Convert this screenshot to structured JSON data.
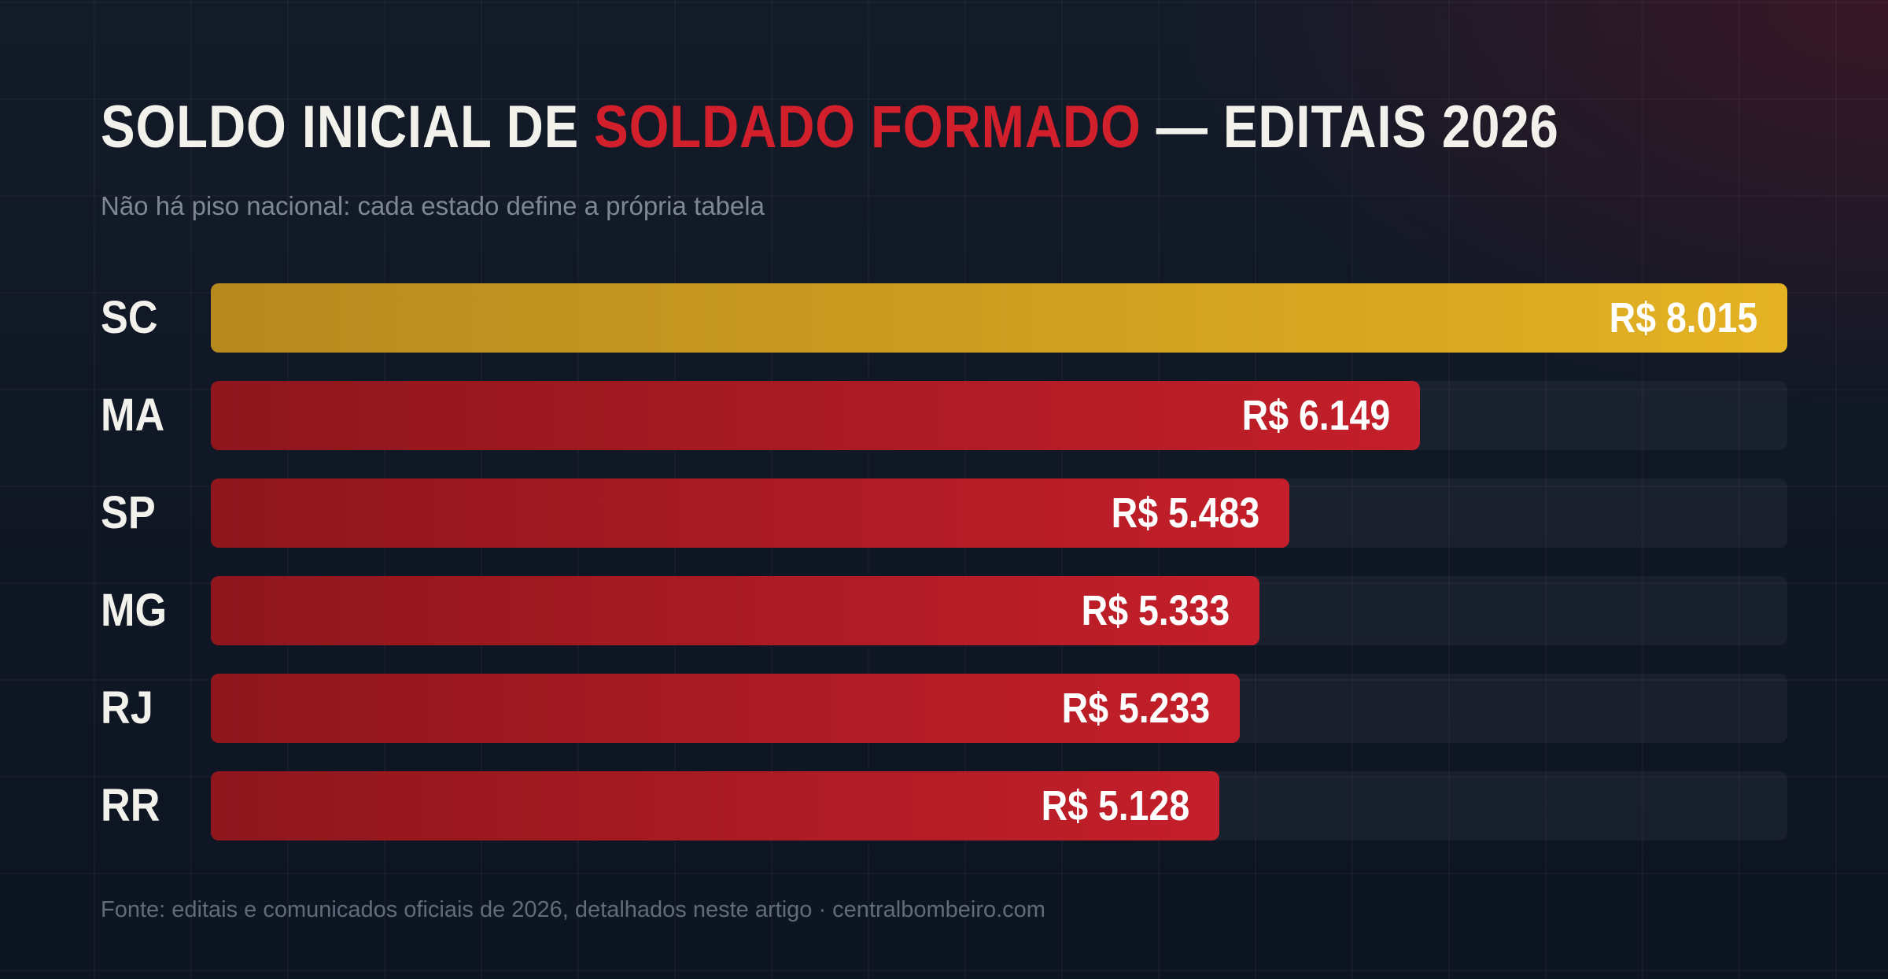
{
  "title": {
    "prefix": "SOLDO INICIAL DE",
    "highlight": "SOLDADO FORMADO",
    "suffix": "— EDITAIS 2026"
  },
  "subtitle": "Não há piso nacional: cada estado define a própria tabela",
  "source": "Fonte: editais e comunicados oficiais de 2026, detalhados neste artigo · centralbombeiro.com",
  "colors": {
    "highlight": "#d21f2c",
    "bar_red_start": "#8e161d",
    "bar_red_end": "#c41f2a",
    "bar_gold_start": "#b68a1f",
    "bar_gold_end": "#e4b222",
    "background": "#101826"
  },
  "chart_data": {
    "type": "bar",
    "orientation": "horizontal",
    "categories": [
      "SC",
      "MA",
      "SP",
      "MG",
      "RJ",
      "RR"
    ],
    "values": [
      8015,
      6149,
      5483,
      5333,
      5233,
      5128
    ],
    "value_labels": [
      "R$ 8.015",
      "R$ 6.149",
      "R$ 5.483",
      "R$ 5.333",
      "R$ 5.233",
      "R$ 5.128"
    ],
    "xlim": [
      0,
      8015
    ],
    "highlighted_category": "SC",
    "grid": false,
    "legend": "none"
  }
}
